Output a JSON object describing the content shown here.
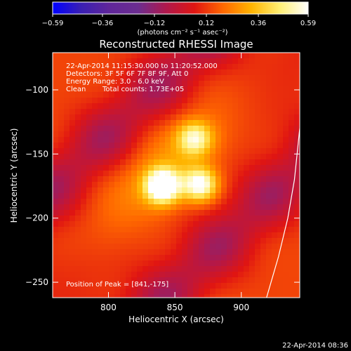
{
  "chart_data": {
    "type": "heatmap",
    "title": "Reconstructed RHESSI Image",
    "xlabel": "Heliocentric X (arcsec)",
    "ylabel": "Heliocentric Y (arcsec)",
    "xlim": [
      758,
      944
    ],
    "ylim": [
      -262,
      -71
    ],
    "x_ticks": [
      800,
      850,
      900
    ],
    "x_tick_labels": [
      "800",
      "850",
      "900"
    ],
    "y_ticks": [
      -100,
      -150,
      -200,
      -250
    ],
    "y_tick_labels": [
      "−100",
      "−150",
      "−200",
      "−250"
    ],
    "grid": false,
    "colorbar": {
      "position": "top",
      "range": [
        -0.59,
        0.59
      ],
      "tick_values": [
        -0.59,
        -0.36,
        -0.12,
        0.12,
        0.36,
        0.59
      ],
      "tick_labels": [
        "−0.59",
        "−0.36",
        "−0.12",
        "0.12",
        "0.36",
        "0.59"
      ],
      "units_label": "(photons cm⁻² s⁻¹ asec⁻²)",
      "colormap": [
        "#0000ff",
        "#3a1fb3",
        "#60269a",
        "#6b2d90",
        "#b0184c",
        "#e01512",
        "#ff6800",
        "#ffb400",
        "#ffef74",
        "#ffffff"
      ]
    },
    "annotations": {
      "time": "22-Apr-2014 11:15:30.000 to 11:20:52.000",
      "detectors": "Detectors: 3F 5F 6F 7F 8F 9F, Att 0",
      "energy": "Energy Range: 3.0 - 6.0 keV",
      "clean_label": "Clean",
      "counts": "Total counts: 1.73E+05",
      "peak": "Position of Peak = [841,-175]"
    },
    "sources": [
      {
        "x": 841,
        "y": -175,
        "peak": 0.59
      },
      {
        "x": 869,
        "y": -174,
        "peak": 0.46
      },
      {
        "x": 865,
        "y": -138,
        "peak": 0.34
      }
    ],
    "limb": [
      [
        919,
        -262
      ],
      [
        928,
        -230
      ],
      [
        935,
        -200
      ],
      [
        940,
        -170
      ],
      [
        943,
        -140
      ],
      [
        944,
        -130
      ]
    ],
    "footer": "22-Apr-2014 08:36"
  }
}
